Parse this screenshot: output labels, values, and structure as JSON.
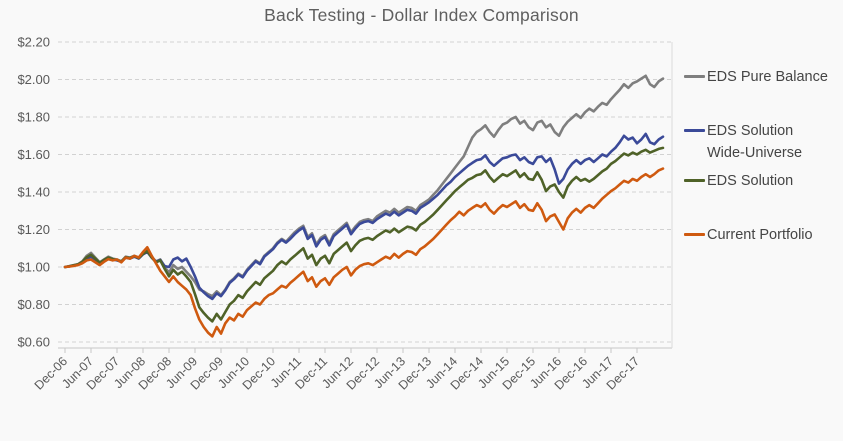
{
  "chart_data": {
    "type": "line",
    "title": "Back Testing - Dollar Index Comparison",
    "xlabel": "",
    "ylabel": "",
    "ylim": [
      0.6,
      2.2
    ],
    "y_tick_step": 0.2,
    "y_tick_labels": [
      "$0.60",
      "$0.80",
      "$1.00",
      "$1.20",
      "$1.40",
      "$1.60",
      "$1.80",
      "$2.00",
      "$2.20"
    ],
    "x_tick_labels": [
      "Dec-06",
      "Jun-07",
      "Dec-07",
      "Jun-08",
      "Dec-08",
      "Jun-09",
      "Dec-09",
      "Jun-10",
      "Dec-10",
      "Jun-11",
      "Dec-11",
      "Jun-12",
      "Dec-12",
      "Jun-13",
      "Dec-13",
      "Jun-14",
      "Dec-14",
      "Jun-15",
      "Dec-15",
      "Jun-16",
      "Dec-16",
      "Jun-17",
      "Dec-17"
    ],
    "points_per_label": 6,
    "grid": "horizontal-dashed",
    "legend_position": "right",
    "series": [
      {
        "name": "EDS Pure Balance",
        "legend_label": "EDS Pure Balance",
        "color": "#7f7f7f",
        "values": [
          1.0,
          1.005,
          1.01,
          1.015,
          1.03,
          1.06,
          1.075,
          1.05,
          1.025,
          1.04,
          1.055,
          1.045,
          1.04,
          1.03,
          1.055,
          1.05,
          1.06,
          1.05,
          1.075,
          1.09,
          1.055,
          1.03,
          1.04,
          1.0,
          0.97,
          1.01,
          0.99,
          1.0,
          0.975,
          0.95,
          0.92,
          0.88,
          0.87,
          0.855,
          0.845,
          0.87,
          0.85,
          0.88,
          0.92,
          0.94,
          0.965,
          0.95,
          0.985,
          1.01,
          1.035,
          1.02,
          1.06,
          1.08,
          1.1,
          1.13,
          1.15,
          1.135,
          1.16,
          1.185,
          1.205,
          1.22,
          1.16,
          1.18,
          1.12,
          1.155,
          1.17,
          1.125,
          1.175,
          1.195,
          1.215,
          1.235,
          1.185,
          1.215,
          1.24,
          1.25,
          1.255,
          1.245,
          1.27,
          1.285,
          1.3,
          1.29,
          1.31,
          1.29,
          1.305,
          1.32,
          1.315,
          1.3,
          1.33,
          1.345,
          1.36,
          1.385,
          1.41,
          1.44,
          1.47,
          1.5,
          1.53,
          1.56,
          1.59,
          1.64,
          1.69,
          1.72,
          1.735,
          1.755,
          1.72,
          1.695,
          1.73,
          1.76,
          1.77,
          1.79,
          1.8,
          1.765,
          1.78,
          1.745,
          1.73,
          1.77,
          1.78,
          1.745,
          1.76,
          1.72,
          1.7,
          1.745,
          1.775,
          1.795,
          1.815,
          1.795,
          1.825,
          1.845,
          1.83,
          1.855,
          1.875,
          1.865,
          1.895,
          1.92,
          1.945,
          1.975,
          1.955,
          1.98,
          1.99,
          2.005,
          2.02,
          1.975,
          1.96,
          1.99,
          2.005
        ]
      },
      {
        "name": "EDS Solution Wide-Universe",
        "legend_label": "EDS Solution\nWide-Universe",
        "color": "#3b4a99",
        "values": [
          1.0,
          1.003,
          1.008,
          1.012,
          1.025,
          1.045,
          1.055,
          1.04,
          1.02,
          1.035,
          1.048,
          1.04,
          1.035,
          1.028,
          1.05,
          1.045,
          1.055,
          1.045,
          1.068,
          1.08,
          1.05,
          1.028,
          1.038,
          1.005,
          1.0,
          1.04,
          1.05,
          1.03,
          1.045,
          1.0,
          0.95,
          0.89,
          0.865,
          0.845,
          0.83,
          0.86,
          0.845,
          0.875,
          0.915,
          0.935,
          0.96,
          0.945,
          0.98,
          1.005,
          1.03,
          1.015,
          1.055,
          1.075,
          1.095,
          1.125,
          1.145,
          1.13,
          1.15,
          1.175,
          1.195,
          1.21,
          1.15,
          1.17,
          1.11,
          1.145,
          1.16,
          1.115,
          1.165,
          1.185,
          1.205,
          1.225,
          1.175,
          1.205,
          1.23,
          1.24,
          1.245,
          1.235,
          1.255,
          1.27,
          1.285,
          1.275,
          1.295,
          1.275,
          1.29,
          1.305,
          1.3,
          1.285,
          1.315,
          1.33,
          1.345,
          1.365,
          1.385,
          1.41,
          1.435,
          1.455,
          1.48,
          1.5,
          1.52,
          1.54,
          1.555,
          1.57,
          1.575,
          1.595,
          1.56,
          1.54,
          1.56,
          1.58,
          1.585,
          1.595,
          1.6,
          1.57,
          1.585,
          1.56,
          1.55,
          1.585,
          1.59,
          1.56,
          1.58,
          1.52,
          1.445,
          1.47,
          1.52,
          1.55,
          1.57,
          1.55,
          1.57,
          1.58,
          1.56,
          1.58,
          1.6,
          1.59,
          1.615,
          1.635,
          1.665,
          1.7,
          1.68,
          1.69,
          1.66,
          1.68,
          1.71,
          1.665,
          1.655,
          1.68,
          1.695
        ]
      },
      {
        "name": "EDS Solution",
        "legend_label": "EDS Solution",
        "color": "#4f6228",
        "values": [
          1.0,
          1.004,
          1.009,
          1.014,
          1.028,
          1.052,
          1.065,
          1.045,
          1.022,
          1.038,
          1.05,
          1.042,
          1.038,
          1.03,
          1.052,
          1.048,
          1.058,
          1.048,
          1.07,
          1.085,
          1.05,
          1.025,
          1.035,
          0.99,
          0.95,
          0.985,
          0.96,
          0.975,
          0.95,
          0.92,
          0.855,
          0.785,
          0.755,
          0.73,
          0.71,
          0.75,
          0.72,
          0.76,
          0.8,
          0.82,
          0.85,
          0.835,
          0.87,
          0.895,
          0.92,
          0.905,
          0.94,
          0.96,
          0.98,
          1.01,
          1.03,
          1.015,
          1.04,
          1.06,
          1.08,
          1.1,
          1.045,
          1.065,
          1.01,
          1.045,
          1.06,
          1.02,
          1.07,
          1.09,
          1.11,
          1.13,
          1.085,
          1.115,
          1.14,
          1.15,
          1.155,
          1.145,
          1.165,
          1.18,
          1.195,
          1.185,
          1.205,
          1.185,
          1.2,
          1.215,
          1.21,
          1.195,
          1.225,
          1.24,
          1.26,
          1.28,
          1.305,
          1.33,
          1.355,
          1.38,
          1.405,
          1.425,
          1.445,
          1.465,
          1.475,
          1.49,
          1.495,
          1.515,
          1.48,
          1.455,
          1.475,
          1.495,
          1.485,
          1.5,
          1.515,
          1.48,
          1.5,
          1.47,
          1.465,
          1.505,
          1.465,
          1.405,
          1.43,
          1.44,
          1.4,
          1.37,
          1.43,
          1.46,
          1.48,
          1.46,
          1.47,
          1.455,
          1.47,
          1.49,
          1.51,
          1.525,
          1.55,
          1.565,
          1.585,
          1.605,
          1.595,
          1.61,
          1.6,
          1.615,
          1.625,
          1.61,
          1.62,
          1.63,
          1.635
        ]
      },
      {
        "name": "Current Portfolio",
        "legend_label": "Current Portfolio",
        "color": "#cf5a10",
        "values": [
          1.0,
          1.002,
          1.006,
          1.01,
          1.02,
          1.035,
          1.04,
          1.025,
          1.01,
          1.028,
          1.042,
          1.035,
          1.04,
          1.025,
          1.05,
          1.045,
          1.06,
          1.05,
          1.08,
          1.105,
          1.06,
          1.02,
          0.98,
          0.95,
          0.92,
          0.95,
          0.92,
          0.9,
          0.88,
          0.85,
          0.78,
          0.72,
          0.68,
          0.65,
          0.63,
          0.68,
          0.645,
          0.7,
          0.73,
          0.715,
          0.75,
          0.735,
          0.77,
          0.79,
          0.81,
          0.8,
          0.83,
          0.85,
          0.86,
          0.88,
          0.9,
          0.89,
          0.915,
          0.935,
          0.955,
          0.975,
          0.925,
          0.945,
          0.895,
          0.925,
          0.94,
          0.905,
          0.945,
          0.965,
          0.985,
          1.0,
          0.955,
          0.985,
          1.005,
          1.015,
          1.02,
          1.01,
          1.025,
          1.04,
          1.055,
          1.045,
          1.07,
          1.05,
          1.07,
          1.085,
          1.08,
          1.065,
          1.095,
          1.11,
          1.13,
          1.15,
          1.175,
          1.2,
          1.225,
          1.25,
          1.27,
          1.295,
          1.275,
          1.3,
          1.315,
          1.33,
          1.32,
          1.34,
          1.305,
          1.285,
          1.31,
          1.33,
          1.32,
          1.335,
          1.35,
          1.315,
          1.335,
          1.305,
          1.3,
          1.34,
          1.305,
          1.245,
          1.27,
          1.28,
          1.24,
          1.2,
          1.26,
          1.29,
          1.31,
          1.29,
          1.315,
          1.33,
          1.315,
          1.34,
          1.365,
          1.385,
          1.405,
          1.42,
          1.44,
          1.46,
          1.45,
          1.47,
          1.46,
          1.48,
          1.495,
          1.48,
          1.495,
          1.515,
          1.525
        ]
      }
    ]
  }
}
